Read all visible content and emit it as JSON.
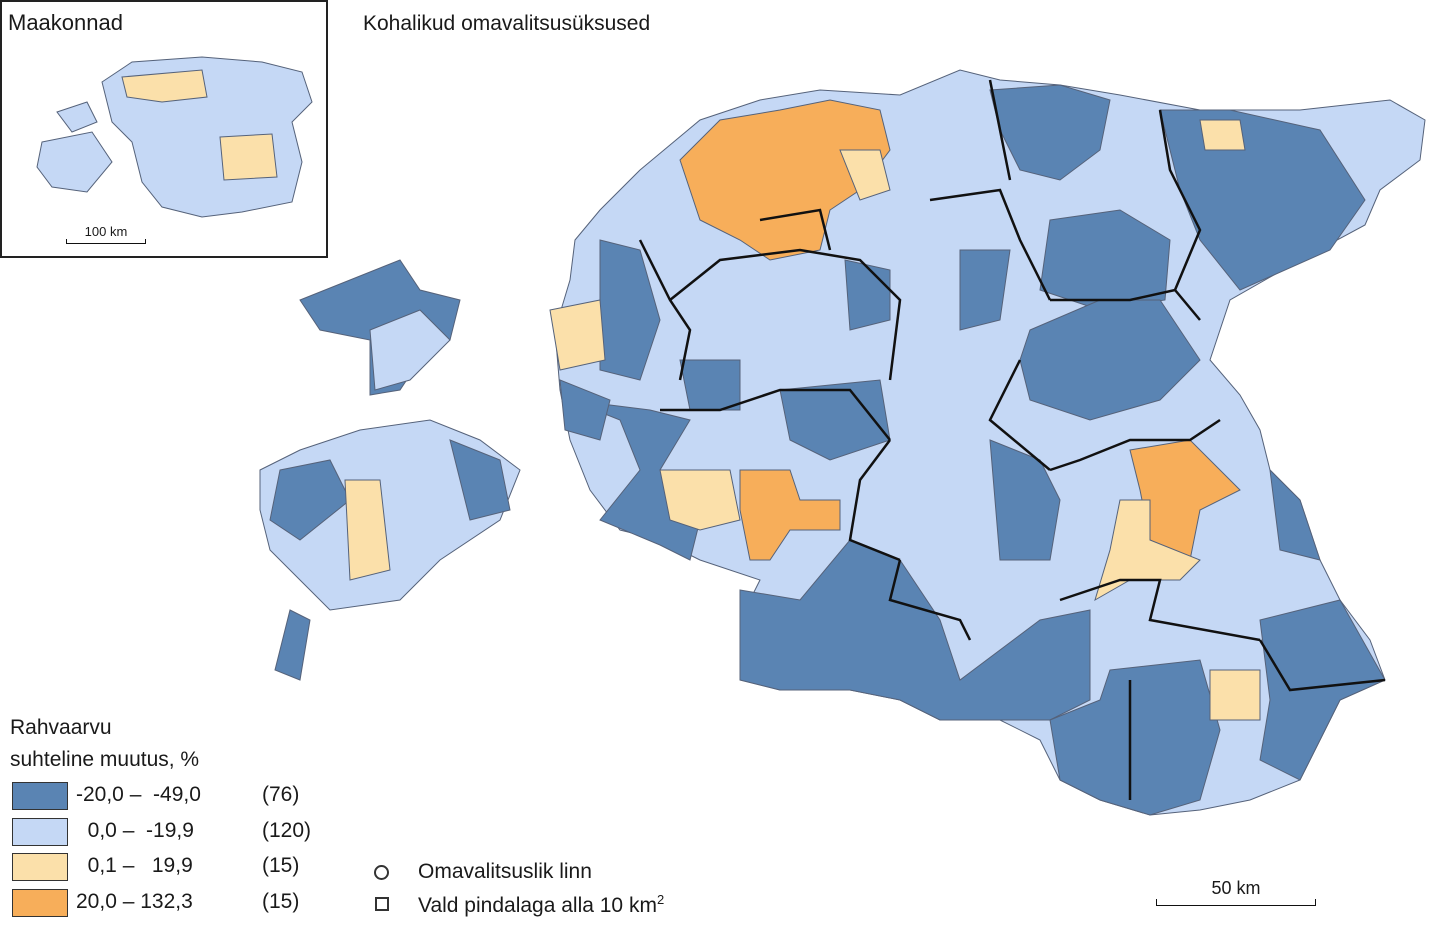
{
  "inset": {
    "title": "Maakonnad",
    "scale_label": "100 km"
  },
  "map": {
    "title": "Kohalikud omavalitsusüksused",
    "scale_label": "50 km"
  },
  "legend": {
    "title_line1": "Rahvaarvu",
    "title_line2": "suhteline muutus, %",
    "classes": [
      {
        "range": "-20,0 –  -49,0",
        "count": "(76)",
        "color": "#5a84b3"
      },
      {
        "range": "  0,0 –  -19,9",
        "count": "(120)",
        "color": "#c5d8f5"
      },
      {
        "range": "  0,1 –   19,9",
        "count": "(15)",
        "color": "#fbe0aa"
      },
      {
        "range": "20,0 – 132,3",
        "count": "(15)",
        "color": "#f7ae5a"
      }
    ]
  },
  "symbols": {
    "town": "Omavalitsuslik linn",
    "small_parish": "Vald pindalaga alla 10 km",
    "small_parish_sup": "2"
  }
}
